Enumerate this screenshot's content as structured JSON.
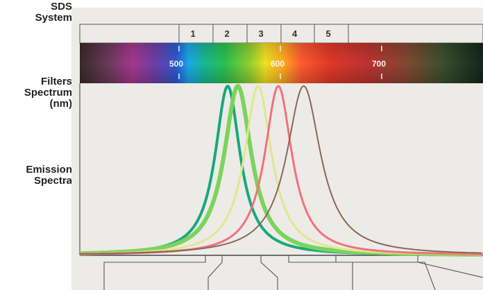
{
  "labels": {
    "sds_system": "SDS\nSystem",
    "filters_spectrum": "Filters\nSpectrum\n(nm)",
    "emission_spectra": "Emission\nSpectra"
  },
  "filters": [
    "1",
    "2",
    "3",
    "4",
    "5"
  ],
  "wavelength_ticks": [
    "500",
    "600",
    "700"
  ],
  "emission_curves": [
    {
      "peak_nm": 548,
      "color": "#17a87c"
    },
    {
      "peak_nm": 558,
      "color": "#7cd35c"
    },
    {
      "peak_nm": 578,
      "color": "#dfe88e"
    },
    {
      "peak_nm": 598,
      "color": "#f2717a"
    },
    {
      "peak_nm": 623,
      "color": "#8a6657"
    }
  ],
  "colors": {
    "panel_background": "#ecebe8",
    "frame": "#555555"
  }
}
